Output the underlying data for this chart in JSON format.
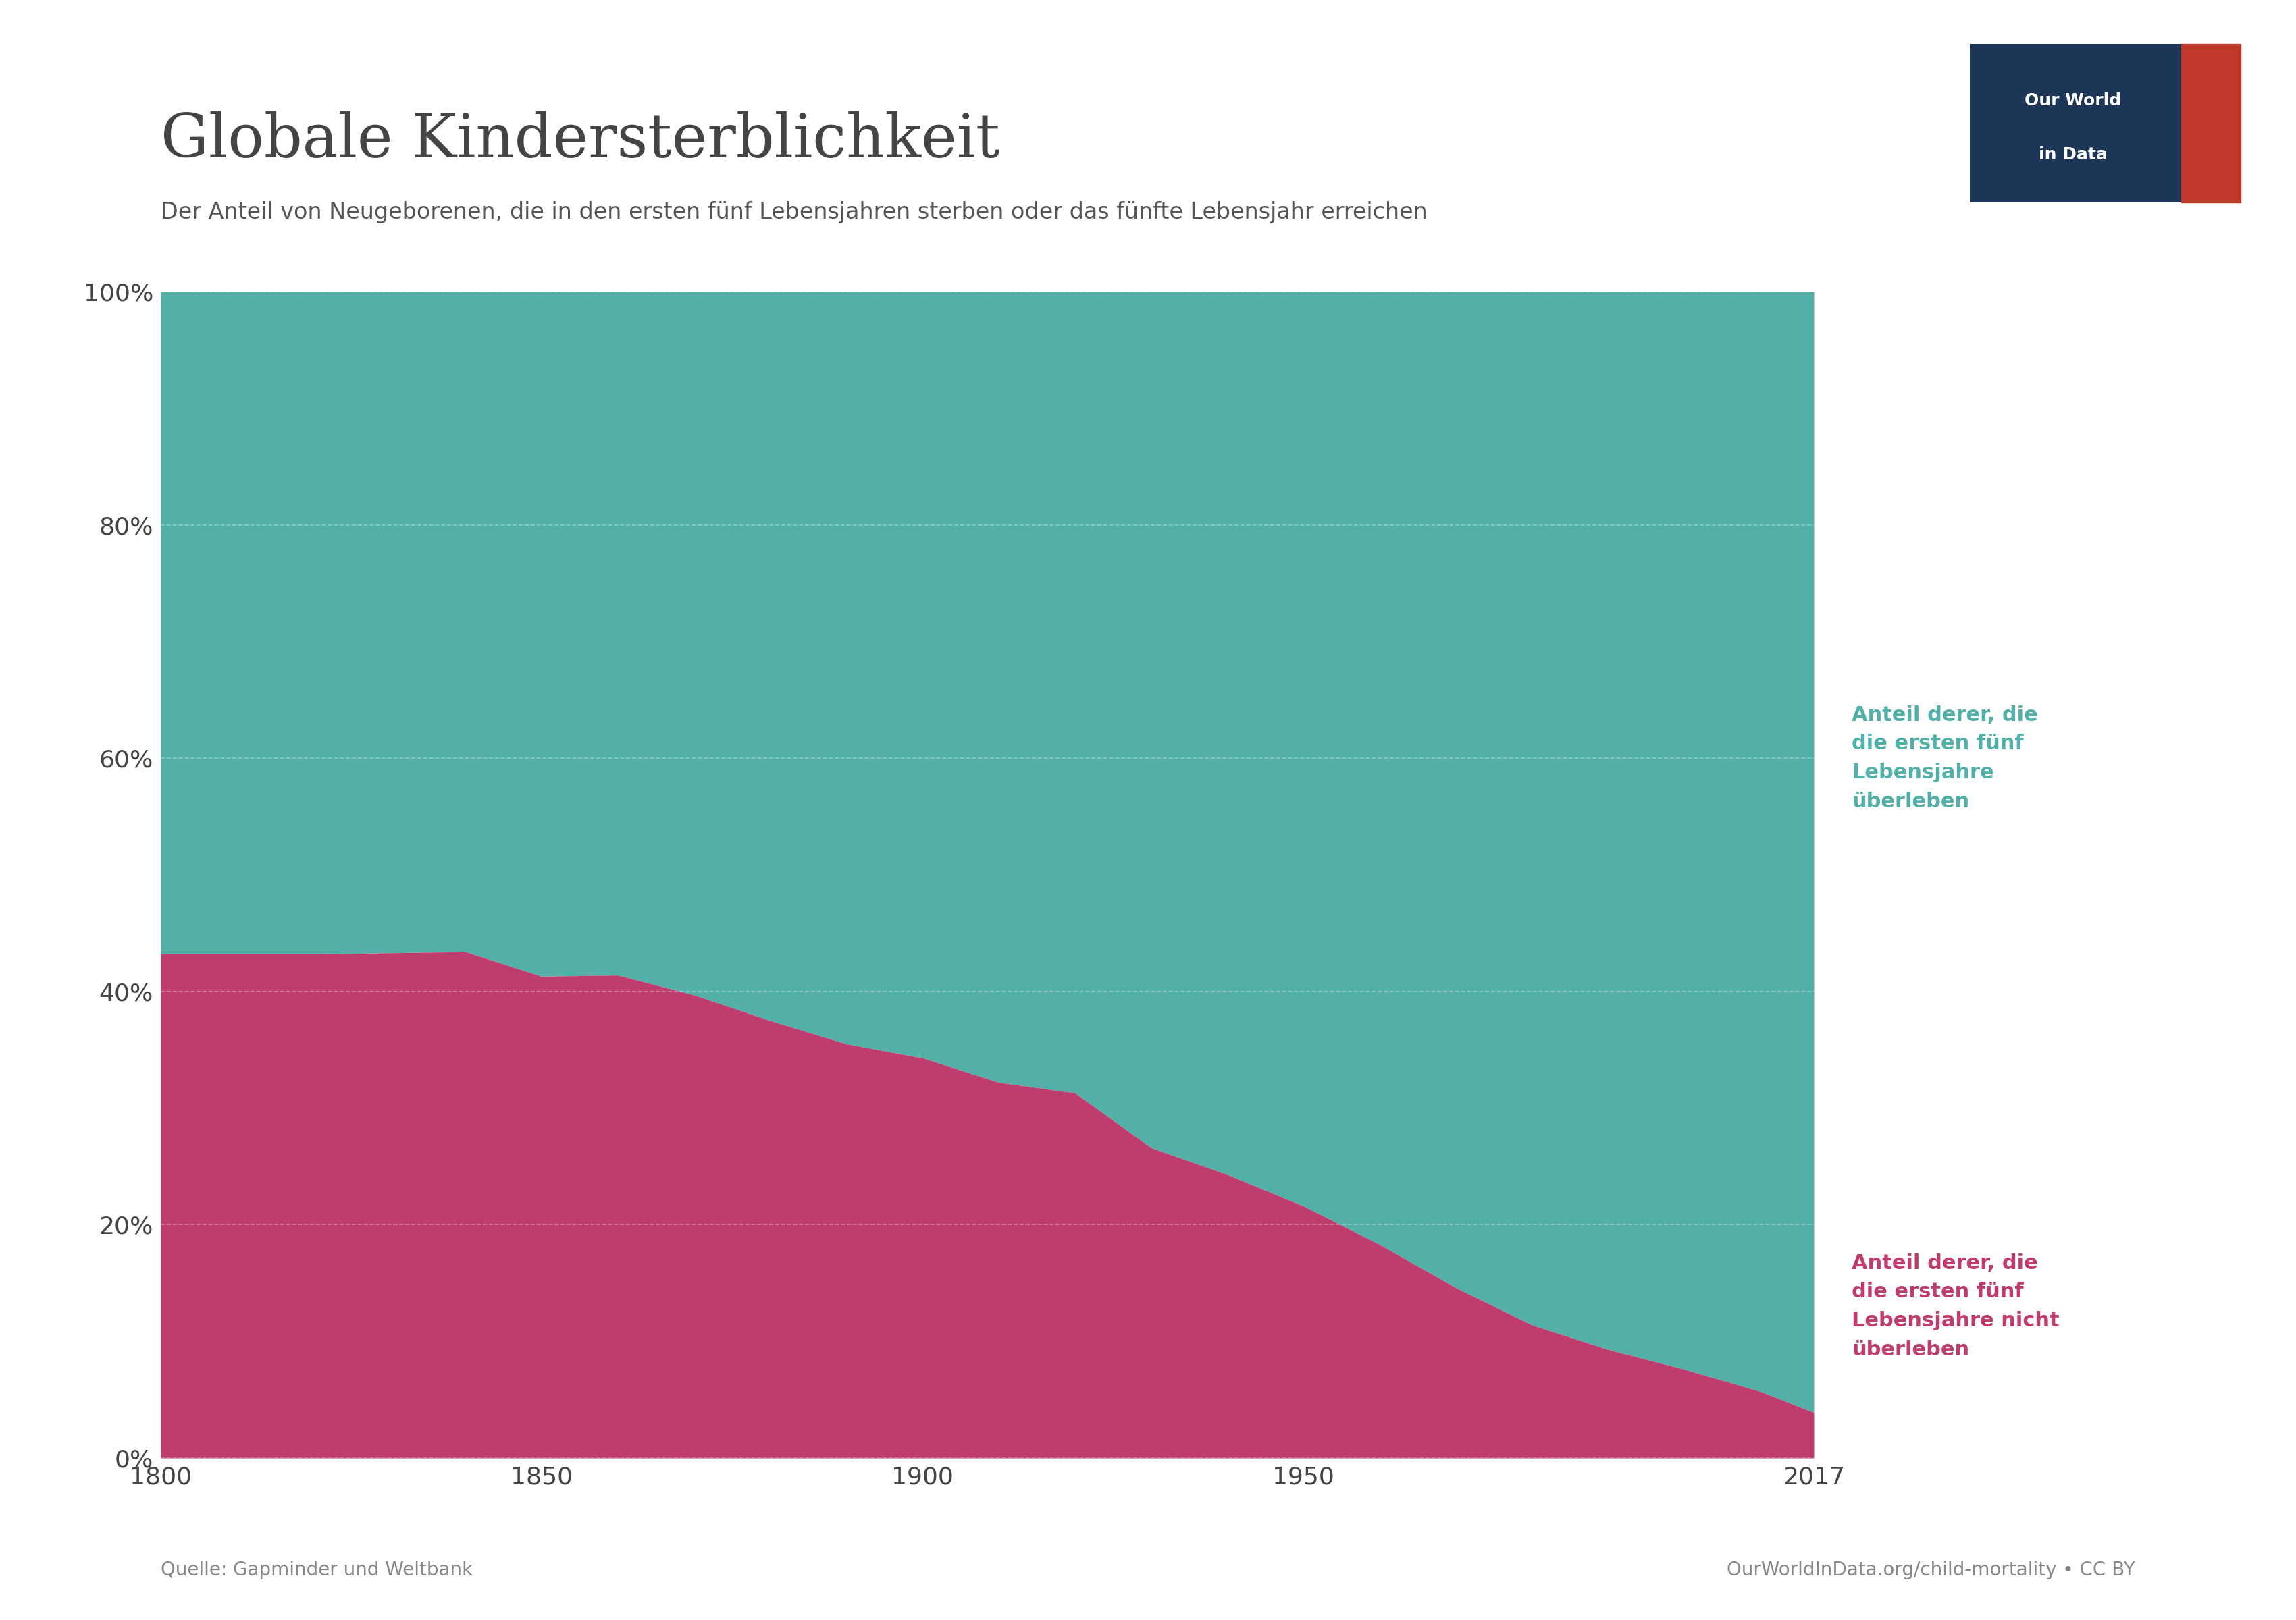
{
  "title": "Globale Kindersterblichkeit",
  "subtitle": "Der Anteil von Neugeborenen, die in den ersten fünf Lebensjahren sterben oder das fünfte Lebensjahr erreichen",
  "source_left": "Quelle: Gapminder und Weltbank",
  "source_right": "OurWorldInData.org/child-mortality • CC BY",
  "color_teal": "#52b0a8",
  "color_pink": "#bf3d6e",
  "title_color": "#444444",
  "subtitle_color": "#555555",
  "owid_bg": "#1d3557",
  "owid_red": "#c0392b",
  "years": [
    1800,
    1810,
    1820,
    1830,
    1840,
    1850,
    1860,
    1870,
    1880,
    1890,
    1900,
    1910,
    1920,
    1930,
    1940,
    1950,
    1960,
    1970,
    1980,
    1990,
    2000,
    2010,
    2017
  ],
  "mortality": [
    0.432,
    0.432,
    0.432,
    0.433,
    0.434,
    0.413,
    0.414,
    0.397,
    0.375,
    0.355,
    0.343,
    0.322,
    0.313,
    0.266,
    0.243,
    0.216,
    0.183,
    0.146,
    0.114,
    0.093,
    0.076,
    0.057,
    0.039
  ],
  "label_teal": "Anteil derer, die\ndie ersten fünf\nLebensjahre\nüberleben",
  "label_pink": "Anteil derer, die\ndie ersten fünf\nLebensjahre nicht\nüberleben",
  "yticks": [
    0.0,
    0.2,
    0.4,
    0.6,
    0.8,
    1.0
  ],
  "ytick_labels": [
    "0%",
    "20%",
    "40%",
    "60%",
    "80%",
    "100%"
  ],
  "xticks": [
    1800,
    1850,
    1900,
    1950,
    2017
  ],
  "background_color": "#ffffff",
  "grid_color": "#ffffff",
  "tick_label_color": "#444444",
  "source_color": "#888888"
}
